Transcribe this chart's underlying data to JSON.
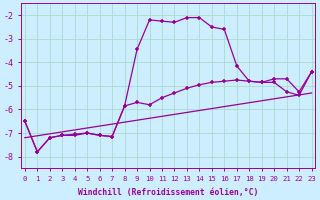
{
  "xlabel": "Windchill (Refroidissement éolien,°C)",
  "x_values": [
    0,
    1,
    2,
    3,
    4,
    5,
    6,
    7,
    8,
    9,
    10,
    11,
    12,
    13,
    14,
    15,
    16,
    17,
    18,
    19,
    20,
    21,
    22,
    23
  ],
  "line1": [
    -6.5,
    -7.8,
    -7.2,
    -7.1,
    -7.1,
    -7.0,
    -7.1,
    -7.15,
    -5.85,
    -3.45,
    -2.2,
    -2.25,
    -2.3,
    -2.1,
    -2.1,
    -2.5,
    -2.6,
    -4.15,
    -4.8,
    -4.85,
    -4.85,
    -5.25,
    -5.4,
    -4.4
  ],
  "line2": [
    -6.5,
    -7.8,
    -7.2,
    -7.1,
    -7.05,
    -7.0,
    -7.1,
    -7.15,
    -5.85,
    -5.7,
    -5.8,
    -5.5,
    -5.3,
    -5.1,
    -4.95,
    -4.85,
    -4.8,
    -4.75,
    -4.8,
    -4.85,
    -4.7,
    -4.7,
    -5.25,
    -4.4
  ],
  "line3_x": [
    0,
    23
  ],
  "line3_y": [
    -7.2,
    -5.3
  ],
  "bg_color": "#cceeff",
  "grid_color": "#aaddcc",
  "line_color": "#990099",
  "ylim": [
    -8.5,
    -1.5
  ],
  "xlim": [
    -0.3,
    23.3
  ],
  "yticks": [
    -8,
    -7,
    -6,
    -5,
    -4,
    -3,
    -2
  ],
  "xticks": [
    0,
    1,
    2,
    3,
    4,
    5,
    6,
    7,
    8,
    9,
    10,
    11,
    12,
    13,
    14,
    15,
    16,
    17,
    18,
    19,
    20,
    21,
    22,
    23
  ]
}
